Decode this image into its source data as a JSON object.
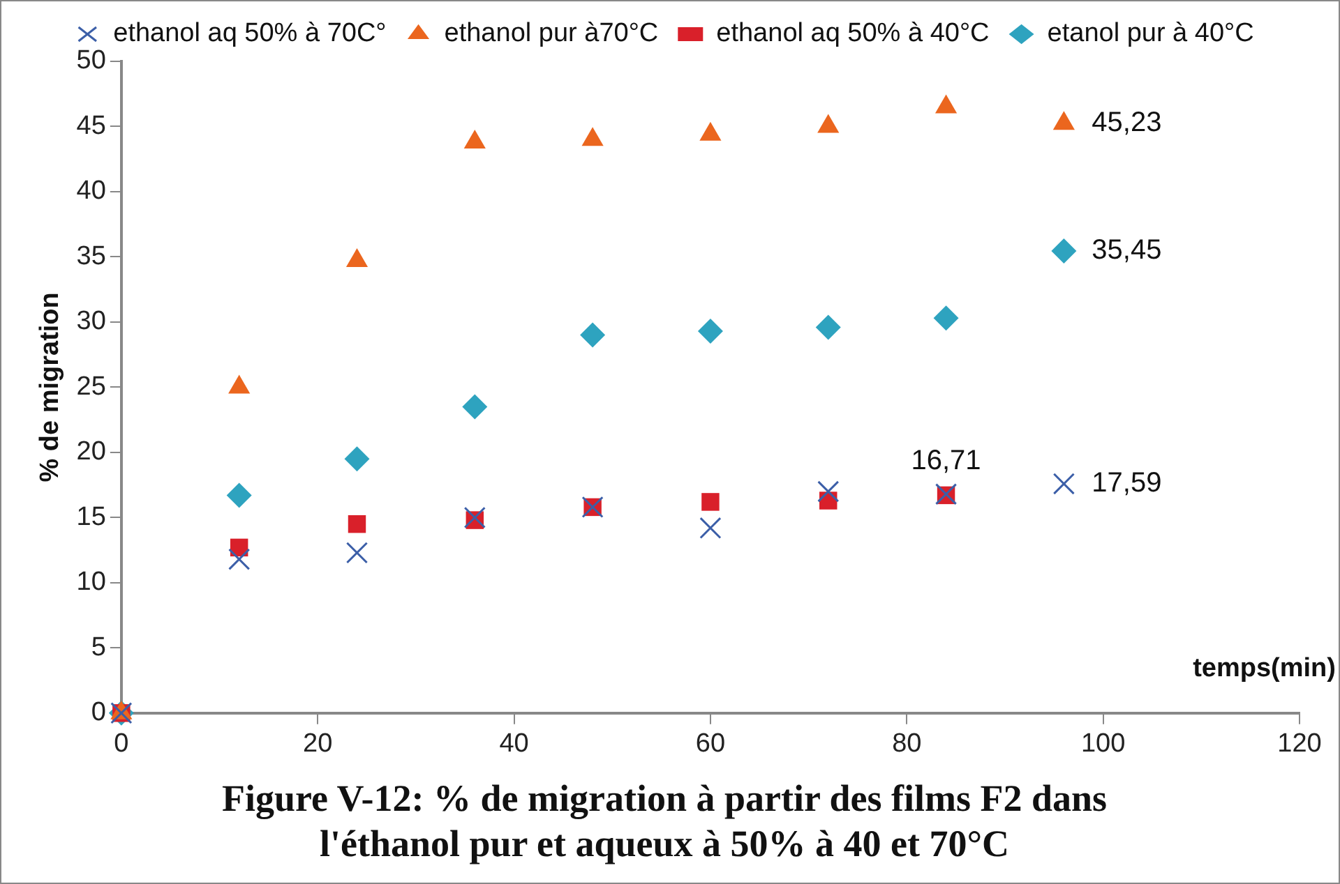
{
  "chart_data": {
    "type": "scatter",
    "title": "Figure V-12: % de migration à partir des films F2 dans l'éthanol pur et aqueux à 50% à 40 et 70°C",
    "xlabel": "temps(min)",
    "ylabel": "% de migration",
    "xlim": [
      0,
      120
    ],
    "xticks": [
      0,
      20,
      40,
      60,
      80,
      100,
      120
    ],
    "ylim": [
      0,
      50
    ],
    "yticks": [
      0,
      5,
      10,
      15,
      20,
      25,
      30,
      35,
      40,
      45,
      50
    ],
    "grid": false,
    "legend": "top",
    "series": [
      {
        "name": "etanol pur à 40°C",
        "color": "#2ea3bf",
        "marker": "diamond",
        "x": [
          0,
          12,
          24,
          36,
          48,
          60,
          72,
          84,
          96
        ],
        "values": [
          0,
          16.7,
          19.5,
          23.5,
          29,
          29.3,
          29.6,
          30.3,
          35.45
        ],
        "value_labels": [
          null,
          null,
          null,
          null,
          null,
          null,
          null,
          null,
          "35,45"
        ]
      },
      {
        "name": "ethanol aq 50% à 40°C",
        "color": "#d9202a",
        "marker": "square",
        "x": [
          0,
          12,
          24,
          36,
          48,
          60,
          72,
          84
        ],
        "values": [
          0,
          12.7,
          14.5,
          14.8,
          15.8,
          16.2,
          16.3,
          16.71
        ],
        "value_labels": [
          null,
          null,
          null,
          null,
          null,
          null,
          null,
          "16,71"
        ]
      },
      {
        "name": "ethanol pur à70°C",
        "color": "#eb661e",
        "marker": "triangle",
        "x": [
          0,
          12,
          24,
          36,
          48,
          60,
          72,
          84,
          96
        ],
        "values": [
          0,
          25,
          34.7,
          43.8,
          44,
          44.4,
          45,
          46.5,
          45.23
        ],
        "value_labels": [
          null,
          null,
          null,
          null,
          null,
          null,
          null,
          null,
          "45,23"
        ]
      },
      {
        "name": "ethanol aq 50% à 70C°",
        "color": "#3c5fa8",
        "marker": "cross",
        "x": [
          0,
          12,
          24,
          36,
          48,
          60,
          72,
          84,
          96
        ],
        "values": [
          0,
          11.8,
          12.3,
          15,
          15.8,
          14.2,
          17,
          16.8,
          17.59
        ],
        "value_labels": [
          null,
          null,
          null,
          null,
          null,
          null,
          null,
          null,
          "17,59"
        ]
      }
    ]
  }
}
